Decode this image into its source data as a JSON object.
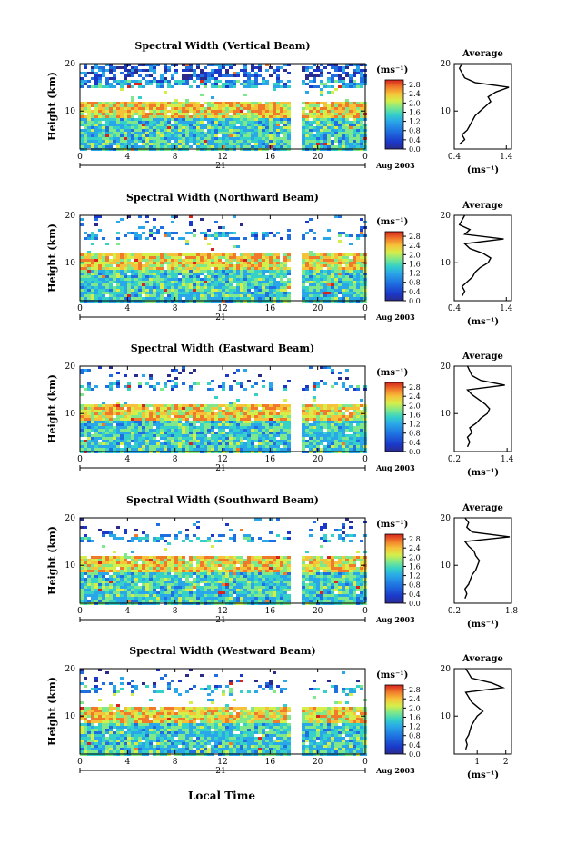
{
  "figure": {
    "xlabel": "Local Time",
    "date_label": "Aug 2003",
    "day_label": "21",
    "colorbar_unit": "(ms⁻¹)",
    "colorbar_ticks": [
      "2.8",
      "2.4",
      "2.0",
      "1.6",
      "1.2",
      "0.8",
      "0.4",
      "0.0"
    ],
    "avg_title": "Average",
    "avg_unit": "(ms⁻¹)",
    "colors": [
      "#2b2b8c",
      "#1b38c8",
      "#1f6fe0",
      "#2aa7e8",
      "#35d0c8",
      "#7ee88a",
      "#d6ee4a",
      "#f6c23a",
      "#f07a2a",
      "#d8241c"
    ]
  },
  "chart_data": [
    {
      "type": "heatmap",
      "title": "Spectral Width (Vertical Beam)",
      "ylabel": "Height (km)",
      "x_ticks": [
        "0",
        "4",
        "8",
        "12",
        "16",
        "20",
        "0"
      ],
      "y_ticks": [
        "20",
        "10"
      ],
      "xlim": [
        0,
        24
      ],
      "ylim": [
        2,
        20
      ],
      "colorbar_range": [
        0.0,
        3.0
      ],
      "data_gap": [
        17.6,
        18.4
      ],
      "avg": {
        "x_ticks": [
          "0.4",
          "1.4"
        ],
        "y_ticks": [
          "20",
          "10"
        ],
        "xlim": [
          0.4,
          1.5
        ],
        "ylim": [
          2,
          20
        ],
        "height": [
          3,
          4,
          5,
          6,
          7,
          8,
          9,
          10,
          11,
          12,
          13,
          14,
          15,
          16,
          17,
          18,
          19,
          20
        ],
        "value": [
          0.5,
          0.6,
          0.55,
          0.65,
          0.7,
          0.75,
          0.8,
          0.9,
          1.0,
          1.1,
          1.05,
          1.2,
          1.45,
          0.8,
          0.6,
          0.55,
          0.5,
          0.55
        ]
      }
    },
    {
      "type": "heatmap",
      "title": "Spectral Width (Northward Beam)",
      "ylabel": "Height (km)",
      "x_ticks": [
        "0",
        "4",
        "8",
        "12",
        "16",
        "20",
        "0"
      ],
      "y_ticks": [
        "20",
        "10"
      ],
      "xlim": [
        0,
        24
      ],
      "ylim": [
        2,
        20
      ],
      "colorbar_range": [
        0.0,
        3.0
      ],
      "data_gap": [
        17.6,
        18.4
      ],
      "avg": {
        "x_ticks": [
          "0.4",
          "1.4"
        ],
        "y_ticks": [
          "20",
          "10"
        ],
        "xlim": [
          0.4,
          1.5
        ],
        "ylim": [
          2,
          20
        ],
        "height": [
          3,
          4,
          5,
          6,
          7,
          8,
          9,
          10,
          11,
          12,
          13,
          14,
          15,
          16,
          17,
          18,
          19,
          20
        ],
        "value": [
          0.55,
          0.6,
          0.55,
          0.65,
          0.75,
          0.8,
          0.9,
          1.05,
          1.1,
          0.95,
          0.7,
          0.6,
          1.35,
          0.6,
          0.7,
          0.5,
          0.55,
          0.6
        ]
      }
    },
    {
      "type": "heatmap",
      "title": "Spectral Width (Eastward Beam)",
      "ylabel": "Height (km)",
      "x_ticks": [
        "0",
        "4",
        "8",
        "12",
        "16",
        "20",
        "0"
      ],
      "y_ticks": [
        "20",
        "10"
      ],
      "xlim": [
        0,
        24
      ],
      "ylim": [
        2,
        20
      ],
      "colorbar_range": [
        0.0,
        3.0
      ],
      "data_gap": [
        17.6,
        18.4
      ],
      "avg": {
        "x_ticks": [
          "0.2",
          "1.4"
        ],
        "y_ticks": [
          "20",
          "10"
        ],
        "xlim": [
          0.2,
          1.5
        ],
        "ylim": [
          2,
          20
        ],
        "height": [
          3,
          4,
          5,
          6,
          7,
          8,
          9,
          10,
          11,
          12,
          13,
          14,
          15,
          16,
          17,
          18,
          19,
          20
        ],
        "value": [
          0.5,
          0.55,
          0.5,
          0.6,
          0.55,
          0.7,
          0.8,
          0.95,
          1.0,
          0.9,
          0.75,
          0.6,
          0.5,
          1.35,
          0.8,
          0.6,
          0.55,
          0.5
        ]
      }
    },
    {
      "type": "heatmap",
      "title": "Spectral Width (Southward Beam)",
      "ylabel": "Height (km)",
      "x_ticks": [
        "0",
        "4",
        "8",
        "12",
        "16",
        "20",
        "0"
      ],
      "y_ticks": [
        "20",
        "10"
      ],
      "xlim": [
        0,
        24
      ],
      "ylim": [
        2,
        20
      ],
      "colorbar_range": [
        0.0,
        3.0
      ],
      "data_gap": [
        17.6,
        18.4
      ],
      "avg": {
        "x_ticks": [
          "0.2",
          "1.8"
        ],
        "y_ticks": [
          "20",
          "10"
        ],
        "xlim": [
          0.2,
          1.8
        ],
        "ylim": [
          2,
          20
        ],
        "height": [
          3,
          4,
          5,
          6,
          7,
          8,
          9,
          10,
          11,
          12,
          13,
          14,
          15,
          16,
          17,
          18,
          19,
          20
        ],
        "value": [
          0.5,
          0.55,
          0.5,
          0.6,
          0.65,
          0.7,
          0.8,
          0.85,
          0.9,
          0.8,
          0.75,
          0.6,
          0.5,
          1.75,
          0.7,
          0.55,
          0.6,
          0.5
        ]
      }
    },
    {
      "type": "heatmap",
      "title": "Spectral Width (Westward Beam)",
      "ylabel": "Height (km)",
      "x_ticks": [
        "0",
        "4",
        "8",
        "12",
        "16",
        "20",
        "0"
      ],
      "y_ticks": [
        "20",
        "10"
      ],
      "xlim": [
        0,
        24
      ],
      "ylim": [
        2,
        20
      ],
      "colorbar_range": [
        0.0,
        3.0
      ],
      "data_gap": [
        17.6,
        18.4
      ],
      "avg": {
        "x_ticks": [
          "1",
          "2"
        ],
        "y_ticks": [
          "20",
          "10"
        ],
        "xlim": [
          0.2,
          2.2
        ],
        "ylim": [
          2,
          20
        ],
        "height": [
          3,
          4,
          5,
          6,
          7,
          8,
          9,
          10,
          11,
          12,
          13,
          14,
          15,
          16,
          17,
          18,
          19,
          20
        ],
        "value": [
          0.6,
          0.65,
          0.6,
          0.7,
          0.75,
          0.8,
          0.9,
          1.0,
          1.2,
          1.0,
          0.8,
          0.7,
          0.6,
          1.9,
          1.5,
          0.8,
          0.7,
          0.6
        ]
      }
    }
  ]
}
